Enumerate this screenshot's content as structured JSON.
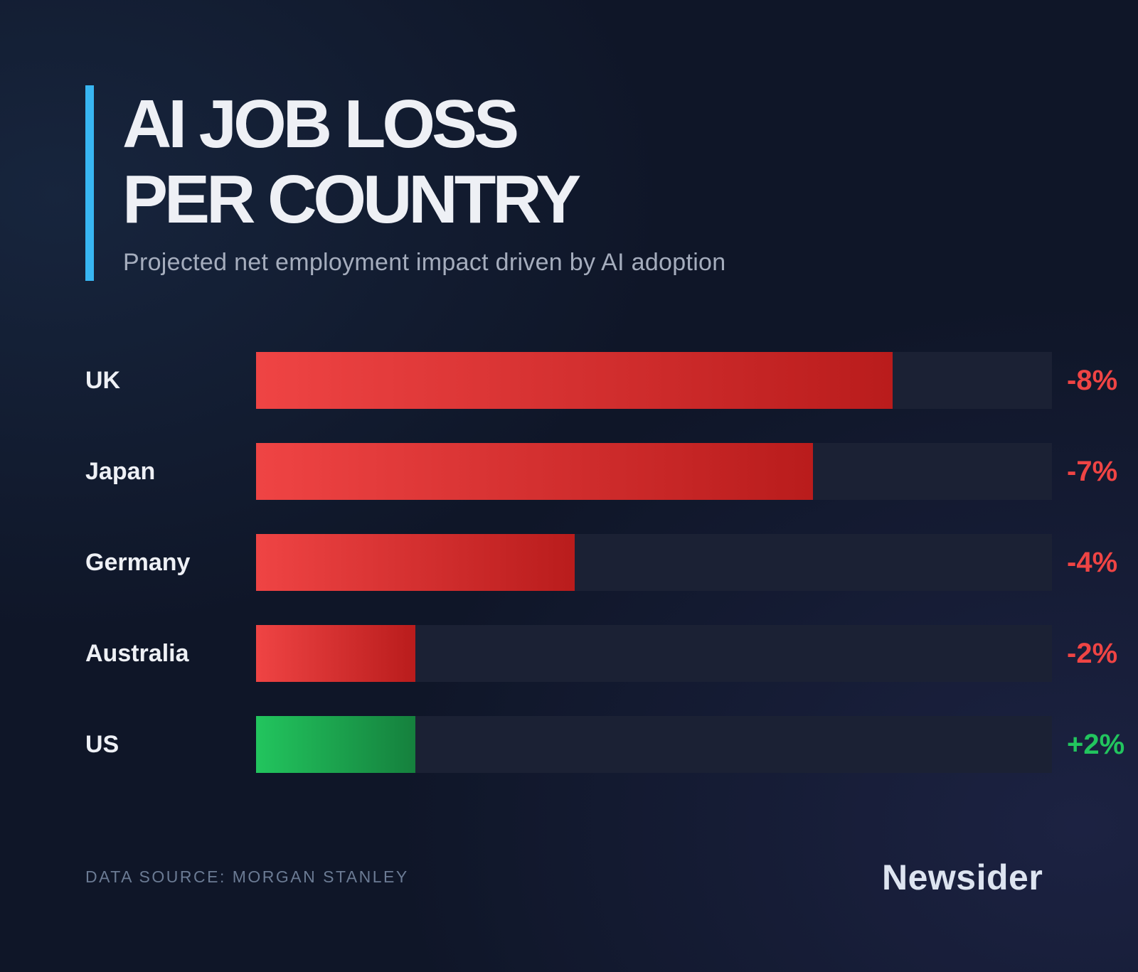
{
  "header": {
    "title_line1": "AI JOB LOSS",
    "title_line2": "PER COUNTRY",
    "subtitle": "Projected net employment impact driven by AI adoption"
  },
  "colors": {
    "accent": "#38b6f2",
    "negative": "#ef4444",
    "positive": "#22c55e",
    "track": "#1b2134",
    "background": "#0f1628"
  },
  "footer": {
    "source": "DATA SOURCE: MORGAN STANLEY",
    "brand": "Newsider"
  },
  "rows": [
    {
      "country": "UK",
      "value": -8,
      "label": "-8%"
    },
    {
      "country": "Japan",
      "value": -7,
      "label": "-7%"
    },
    {
      "country": "Germany",
      "value": -4,
      "label": "-4%"
    },
    {
      "country": "Australia",
      "value": -2,
      "label": "-2%"
    },
    {
      "country": "US",
      "value": 2,
      "label": "+2%"
    }
  ],
  "chart_data": {
    "type": "bar",
    "orientation": "horizontal",
    "title": "AI JOB LOSS PER COUNTRY",
    "subtitle": "Projected net employment impact driven by AI adoption",
    "categories": [
      "UK",
      "Japan",
      "Germany",
      "Australia",
      "US"
    ],
    "values": [
      -8,
      -7,
      -4,
      -2,
      2
    ],
    "value_labels": [
      "-8%",
      "-7%",
      "-4%",
      "-2%",
      "+2%"
    ],
    "unit": "%",
    "xlabel": "",
    "ylabel": "",
    "scale_max_abs": 10,
    "grid": false,
    "legend": null,
    "source": "DATA SOURCE: MORGAN STANLEY"
  }
}
